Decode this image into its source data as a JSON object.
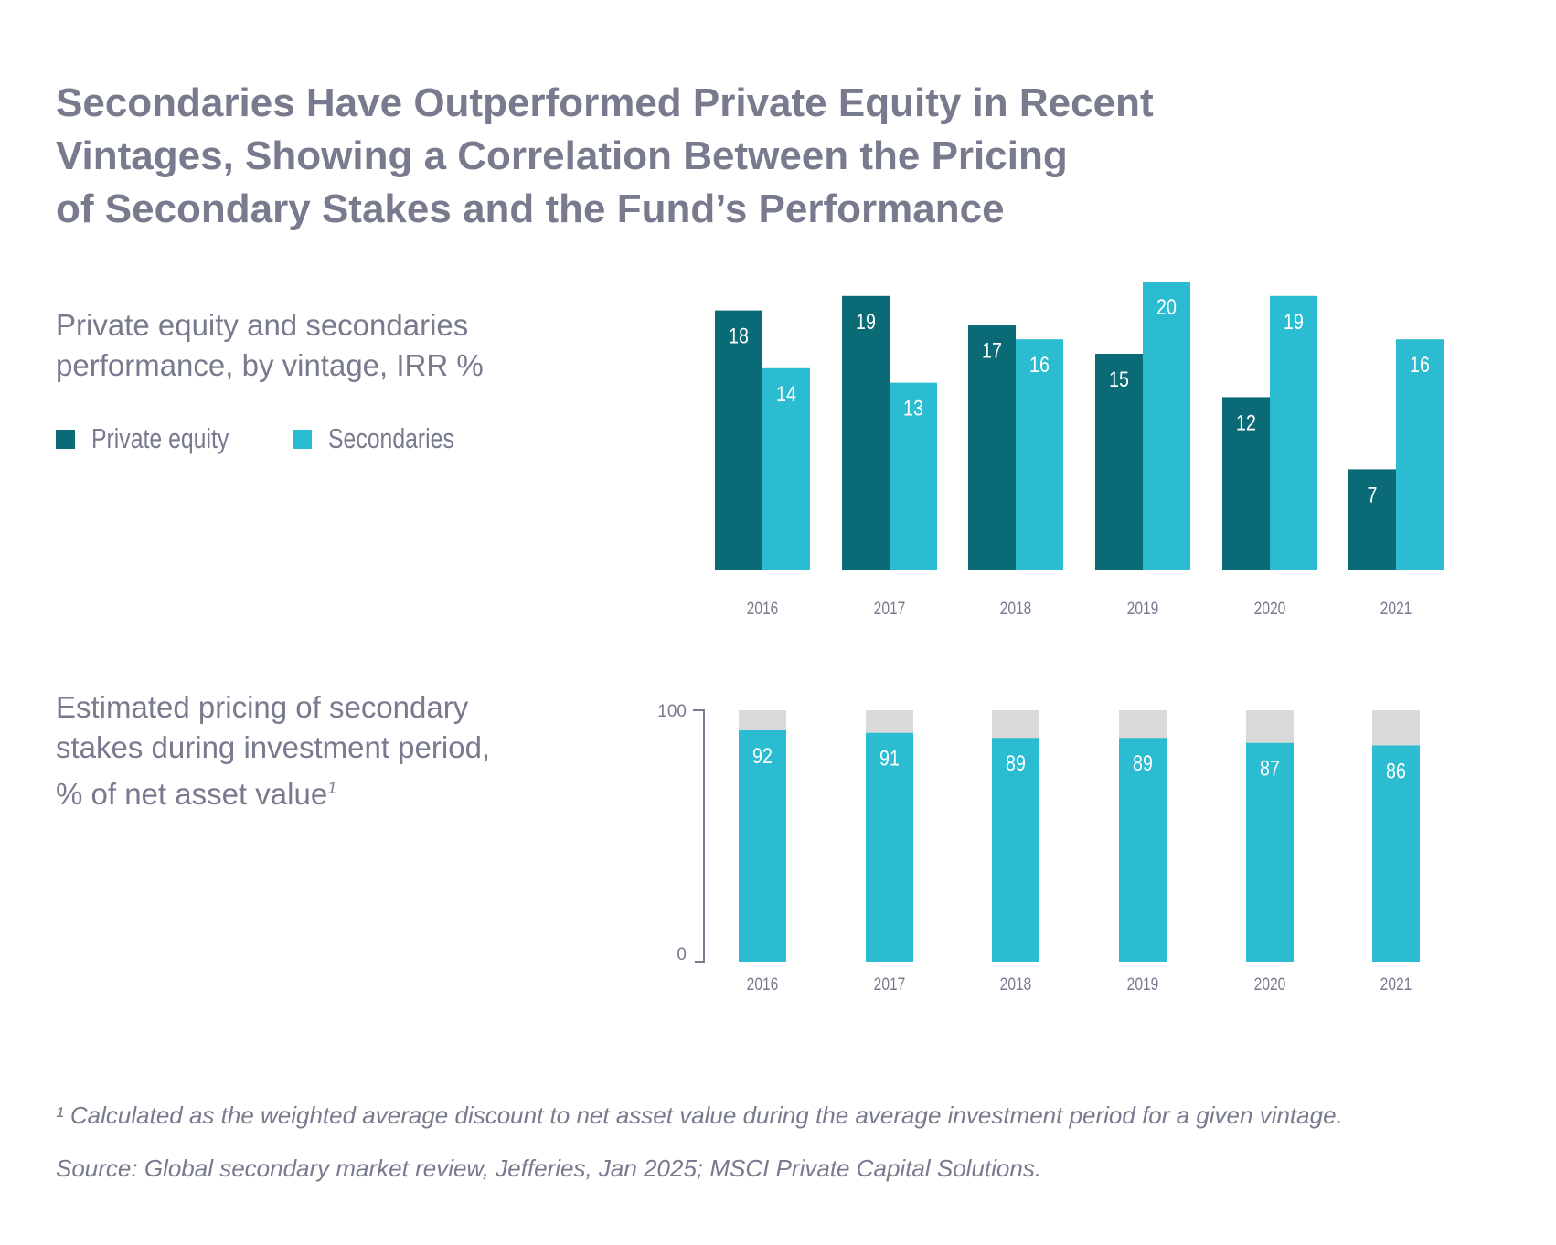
{
  "title": [
    "Secondaries Have Outperformed Private Equity in Recent",
    "Vintages, Showing a Correlation Between the Pricing",
    "of Secondary Stakes and the Fund’s Performance"
  ],
  "colors": {
    "private_equity": "#0a6a76",
    "secondaries": "#2bbcd1",
    "remainder": "#d9d9d9",
    "text": "#787a8e"
  },
  "chart_data": [
    {
      "type": "bar",
      "title": [
        "Private equity and secondaries",
        "performance, by vintage, IRR %"
      ],
      "categories": [
        "2016",
        "2017",
        "2018",
        "2019",
        "2020",
        "2021"
      ],
      "series": [
        {
          "name": "Private equity",
          "values": [
            18,
            19,
            17,
            15,
            12,
            7
          ]
        },
        {
          "name": "Secondaries",
          "values": [
            14,
            13,
            16,
            20,
            19,
            16
          ]
        }
      ],
      "xlabel": "",
      "ylabel": "IRR %",
      "ylim": [
        0,
        20
      ],
      "legend": "left"
    },
    {
      "type": "bar",
      "title": [
        "Estimated pricing of secondary",
        "stakes during investment period,",
        "% of net asset value"
      ],
      "title_sup": "1",
      "categories": [
        "2016",
        "2017",
        "2018",
        "2019",
        "2020",
        "2021"
      ],
      "values": [
        92,
        91,
        89,
        89,
        87,
        86
      ],
      "ylim": [
        0,
        100
      ],
      "yticks": [
        "0",
        "100"
      ]
    }
  ],
  "footnotes": {
    "note": "¹ Calculated as the weighted average discount to net asset value during the average investment period for a given vintage.",
    "source": "Source: Global secondary market review, Jefferies, Jan 2025; MSCI Private Capital Solutions."
  }
}
